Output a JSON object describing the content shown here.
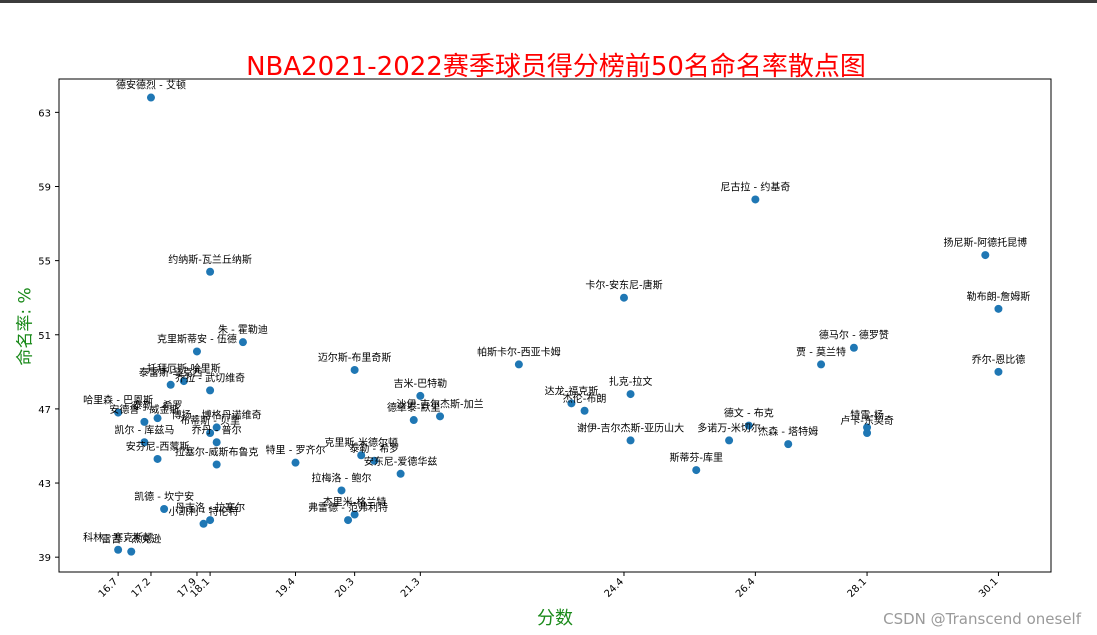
{
  "watermark": "CSDN @Transcend oneself",
  "chart_data": {
    "type": "scatter",
    "title": "NBA2021-2022赛季球员得分榜前50名命名率散点图",
    "xlabel": "分数",
    "ylabel": "命名率: %",
    "xlim": [
      15.8,
      30.9
    ],
    "ylim": [
      38.2,
      64.8
    ],
    "x_ticks": [
      16.7,
      17.2,
      17.9,
      18.1,
      19.4,
      20.3,
      21.3,
      24.4,
      26.4,
      28.1,
      30.1
    ],
    "y_ticks": [
      39,
      43,
      47,
      51,
      55,
      59,
      63
    ],
    "color": "#1f77b4",
    "title_color": "#ff0000",
    "axis_label_color": "#1a8a1a",
    "points": [
      {
        "name": "德安德烈 - 艾顿",
        "x": 17.2,
        "y": 63.8
      },
      {
        "name": "尼古拉 - 约基奇",
        "x": 26.4,
        "y": 58.3
      },
      {
        "name": "扬尼斯-阿德托昆博",
        "x": 29.9,
        "y": 55.3
      },
      {
        "name": "约纳斯-瓦兰丘纳斯",
        "x": 18.1,
        "y": 54.4
      },
      {
        "name": "卡尔-安东尼-唐斯",
        "x": 24.4,
        "y": 53.0
      },
      {
        "name": "勒布朗-詹姆斯",
        "x": 30.1,
        "y": 52.4
      },
      {
        "name": "朱 - 霍勒迪",
        "x": 18.6,
        "y": 50.6
      },
      {
        "name": "克里斯蒂安 - 伍德",
        "x": 17.9,
        "y": 50.1
      },
      {
        "name": "德马尔 - 德罗赞",
        "x": 27.9,
        "y": 50.3
      },
      {
        "name": "贾 - 莫兰特",
        "x": 27.4,
        "y": 49.4
      },
      {
        "name": "帕斯卡尔-西亚卡姆",
        "x": 22.8,
        "y": 49.4
      },
      {
        "name": "迈尔斯-布里奇斯",
        "x": 20.3,
        "y": 49.1
      },
      {
        "name": "乔尔-恩比德",
        "x": 30.1,
        "y": 49.0
      },
      {
        "name": "托拜厄斯-哈里斯",
        "x": 17.7,
        "y": 48.5
      },
      {
        "name": "泰雷斯-马克西",
        "x": 17.5,
        "y": 48.3
      },
      {
        "name": "乔拉 - 武切维奇",
        "x": 18.1,
        "y": 48.0
      },
      {
        "name": "扎克-拉文",
        "x": 24.5,
        "y": 47.8
      },
      {
        "name": "吉米-巴特勒",
        "x": 21.3,
        "y": 47.7
      },
      {
        "name": "达龙-福克斯",
        "x": 23.6,
        "y": 47.3
      },
      {
        "name": "杰伦-布朗",
        "x": 23.8,
        "y": 46.9
      },
      {
        "name": "哈里森 - 巴恩斯",
        "x": 16.7,
        "y": 46.8
      },
      {
        "name": "安德鲁 - 威金斯",
        "x": 17.1,
        "y": 46.3
      },
      {
        "name": "泰勒 - 希罗",
        "x": 17.3,
        "y": 46.5
      },
      {
        "name": "博扬 - 博格丹诺维奇",
        "x": 18.2,
        "y": 46.0
      },
      {
        "name": "布蒂斯 - 贝里",
        "x": 18.1,
        "y": 45.7
      },
      {
        "name": "德章泰-默里",
        "x": 21.2,
        "y": 46.4
      },
      {
        "name": "沙伊-吉尔杰斯-加兰",
        "x": 21.6,
        "y": 46.6
      },
      {
        "name": "德文 - 布克",
        "x": 26.3,
        "y": 46.1
      },
      {
        "name": "特雷-杨",
        "x": 28.1,
        "y": 46.0
      },
      {
        "name": "卢卡-东契奇",
        "x": 28.1,
        "y": 45.7
      },
      {
        "name": "谢伊-吉尔杰斯-亚历山大",
        "x": 24.5,
        "y": 45.3
      },
      {
        "name": "多诺万-米切尔",
        "x": 26.0,
        "y": 45.3
      },
      {
        "name": "杰森 - 塔特姆",
        "x": 26.9,
        "y": 45.1
      },
      {
        "name": "凯尔 - 库兹马",
        "x": 17.1,
        "y": 45.2
      },
      {
        "name": "乔丹 - 普尔",
        "x": 18.2,
        "y": 45.2
      },
      {
        "name": "克里斯-米德尔顿",
        "x": 20.4,
        "y": 44.5
      },
      {
        "name": "泰勒 - 希罗",
        "x": 20.6,
        "y": 44.2
      },
      {
        "name": "安东尼-爱德华兹",
        "x": 21.0,
        "y": 43.5
      },
      {
        "name": "安芬尼-西蒙斯",
        "x": 17.3,
        "y": 44.3
      },
      {
        "name": "拉塞尔-威斯布鲁克",
        "x": 18.2,
        "y": 44.0
      },
      {
        "name": "特里 - 罗齐尔",
        "x": 19.4,
        "y": 44.1
      },
      {
        "name": "斯蒂芬-库里",
        "x": 25.5,
        "y": 43.7
      },
      {
        "name": "拉梅洛 - 鲍尔",
        "x": 20.1,
        "y": 42.6
      },
      {
        "name": "凯德 - 坎宁安",
        "x": 17.4,
        "y": 41.6
      },
      {
        "name": "杰里米-格兰特",
        "x": 20.3,
        "y": 41.3
      },
      {
        "name": "弗雷德 - 范弗利特",
        "x": 20.2,
        "y": 41.0
      },
      {
        "name": "丹吉洛 - 拉塞尔",
        "x": 18.1,
        "y": 41.0
      },
      {
        "name": "小凯利 - 特伦特",
        "x": 18.0,
        "y": 40.8
      },
      {
        "name": "科林 - 塞克斯顿",
        "x": 16.7,
        "y": 39.4
      },
      {
        "name": "雷吉 - 杰克逊",
        "x": 16.9,
        "y": 39.3
      }
    ]
  }
}
